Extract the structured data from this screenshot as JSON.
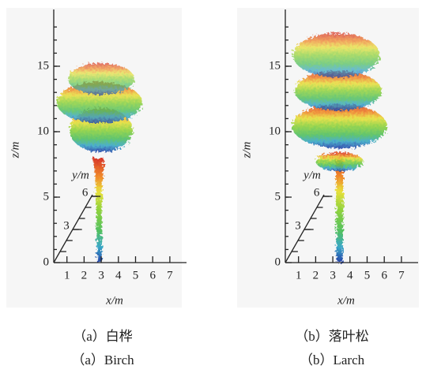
{
  "figures": [
    {
      "z_label": "z/m",
      "x_label": "x/m",
      "y_label": "y/m",
      "zticks": [
        0,
        5,
        10,
        15
      ],
      "xticks": [
        1,
        2,
        3,
        4,
        5,
        6,
        7
      ],
      "yticks": [
        3,
        6
      ],
      "caption_zh": "（a）白桦",
      "caption_en": "（a）Birch"
    },
    {
      "z_label": "z/m",
      "x_label": "x/m",
      "y_label": "y/m",
      "zticks": [
        0,
        5,
        10,
        15
      ],
      "xticks": [
        1,
        2,
        3,
        4,
        5,
        6,
        7
      ],
      "yticks": [
        3,
        6
      ],
      "caption_zh": "（b）落叶松",
      "caption_en": "（b）Larch"
    }
  ]
}
